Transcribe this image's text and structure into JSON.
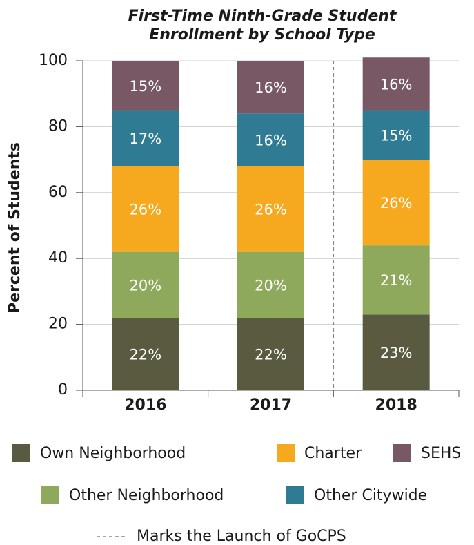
{
  "chart_data": {
    "type": "bar",
    "stacked": true,
    "title": [
      "First-Time Ninth-Grade Student",
      "Enrollment by School Type"
    ],
    "ylabel": "Percent of Students",
    "categories": [
      "2016",
      "2017",
      "2018"
    ],
    "series": [
      {
        "name": "Own Neighborhood",
        "color": "#595a40",
        "values": [
          22,
          22,
          23
        ],
        "value_labels": [
          "22%",
          "22%",
          "23%"
        ]
      },
      {
        "name": "Other Neighborhood",
        "color": "#8fa95c",
        "values": [
          20,
          20,
          21
        ],
        "value_labels": [
          "20%",
          "20%",
          "21%"
        ]
      },
      {
        "name": "Charter",
        "color": "#f6a81e",
        "values": [
          26,
          26,
          26
        ],
        "value_labels": [
          "26%",
          "26%",
          "26%"
        ]
      },
      {
        "name": "Other Citywide",
        "color": "#2f7b94",
        "values": [
          17,
          16,
          15
        ],
        "value_labels": [
          "17%",
          "16%",
          "15%"
        ]
      },
      {
        "name": "SEHS",
        "color": "#795866",
        "values": [
          15,
          16,
          16
        ],
        "value_labels": [
          "15%",
          "16%",
          "16%"
        ]
      }
    ],
    "ylim": [
      0,
      100
    ],
    "yticks": [
      0,
      20,
      40,
      60,
      80,
      100
    ],
    "grid": true,
    "annotation": "Marks the Launch of GoCPS"
  }
}
